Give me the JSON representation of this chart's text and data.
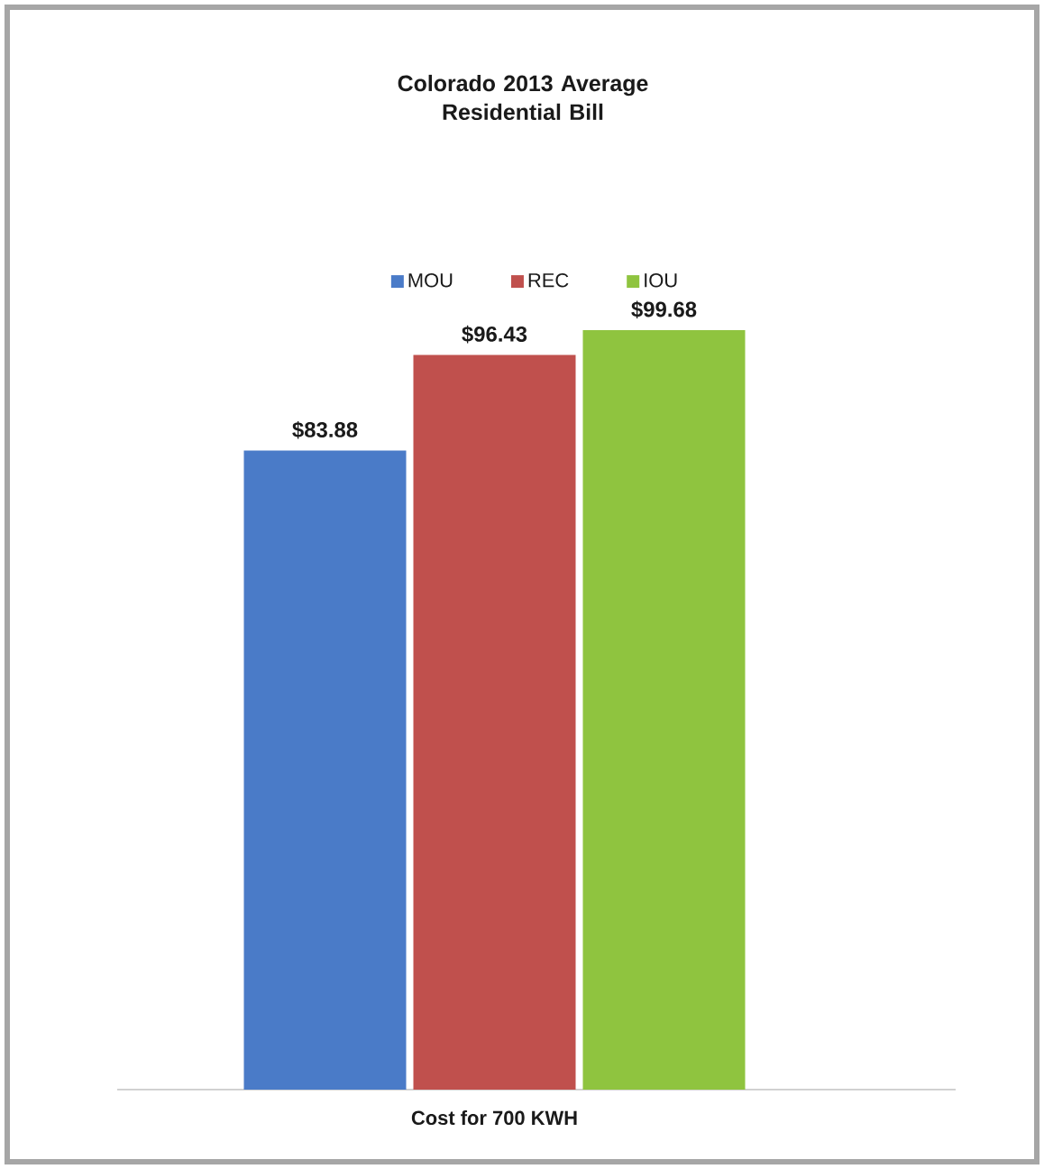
{
  "chart_data": {
    "type": "bar",
    "title": "Colorado 2013 Average Residential Bill",
    "xlabel": "Cost for 700 KWH",
    "categories": [
      null
    ],
    "series": [
      {
        "name": "MOU",
        "color": "#4a7bc8",
        "values": [
          83.88
        ],
        "value_labels": [
          "$83.88"
        ]
      },
      {
        "name": "REC",
        "color": "#c0504d",
        "values": [
          96.43
        ],
        "value_labels": [
          "$96.43"
        ]
      },
      {
        "name": "IOU",
        "color": "#8fc43f",
        "values": [
          99.68
        ],
        "value_labels": [
          "$99.68"
        ]
      }
    ],
    "legend": "top"
  }
}
